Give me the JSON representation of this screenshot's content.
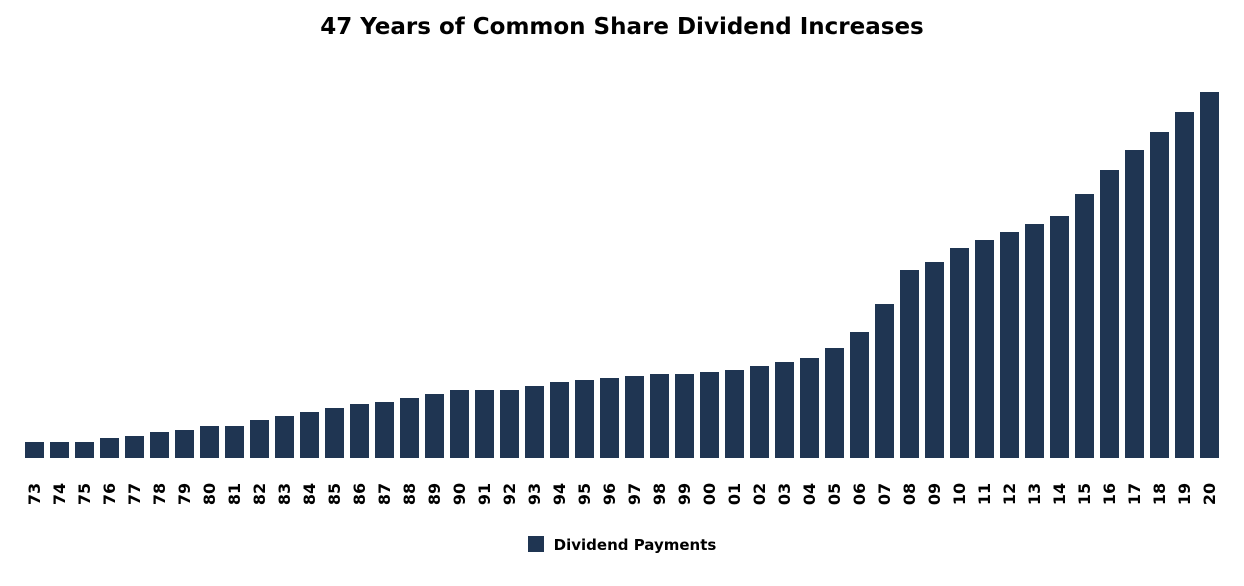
{
  "chart_data": {
    "type": "bar",
    "title": "47 Years of Common Share Dividend Increases",
    "xlabel": "",
    "ylabel": "",
    "y_axis_shown": false,
    "grid": false,
    "legend_position": "bottom",
    "bar_color": "#1f3552",
    "categories": [
      "73",
      "74",
      "75",
      "76",
      "77",
      "78",
      "79",
      "80",
      "81",
      "82",
      "83",
      "84",
      "85",
      "86",
      "87",
      "88",
      "89",
      "90",
      "91",
      "92",
      "93",
      "94",
      "95",
      "96",
      "97",
      "98",
      "99",
      "00",
      "01",
      "02",
      "03",
      "04",
      "05",
      "06",
      "07",
      "08",
      "09",
      "10",
      "11",
      "12",
      "13",
      "14",
      "15",
      "16",
      "17",
      "18",
      "19",
      "20"
    ],
    "series": [
      {
        "name": "Dividend Payments",
        "values": [
          16,
          16,
          16,
          20,
          22,
          26,
          28,
          32,
          32,
          38,
          42,
          46,
          50,
          54,
          56,
          60,
          64,
          68,
          68,
          68,
          72,
          76,
          78,
          80,
          82,
          84,
          84,
          86,
          88,
          92,
          96,
          100,
          110,
          126,
          154,
          188,
          196,
          210,
          218,
          226,
          234,
          242,
          264,
          288,
          308,
          326,
          346,
          366
        ]
      }
    ],
    "ylim": [
      0,
      380
    ]
  }
}
